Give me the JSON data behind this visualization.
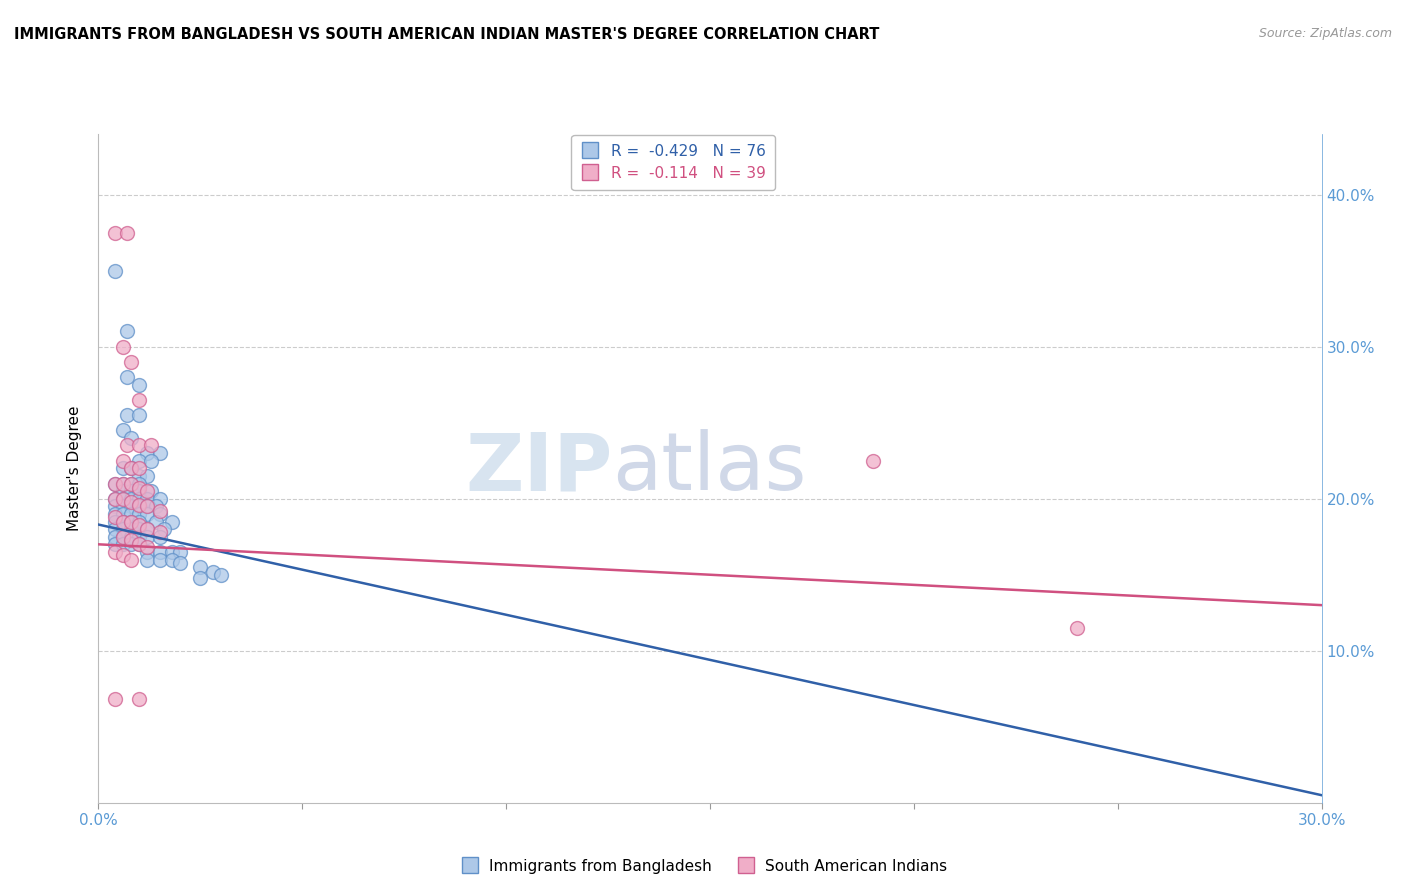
{
  "title": "IMMIGRANTS FROM BANGLADESH VS SOUTH AMERICAN INDIAN MASTER'S DEGREE CORRELATION CHART",
  "source": "Source: ZipAtlas.com",
  "ylabel": "Master's Degree",
  "ylabel_right_ticks": [
    "10.0%",
    "20.0%",
    "30.0%",
    "40.0%"
  ],
  "ylabel_right_vals": [
    0.1,
    0.2,
    0.3,
    0.4
  ],
  "xmin": 0.0,
  "xmax": 0.3,
  "ymin": 0.0,
  "ymax": 0.44,
  "legend_blue": "R =  -0.429   N = 76",
  "legend_pink": "R =  -0.114   N = 39",
  "legend_blue_label": "Immigrants from Bangladesh",
  "legend_pink_label": "South American Indians",
  "blue_color": "#adc8e8",
  "blue_edge_color": "#6090c8",
  "pink_color": "#f0aec8",
  "pink_edge_color": "#d06090",
  "blue_line_color": "#3060a8",
  "pink_line_color": "#d05080",
  "blue_line": [
    [
      0.0,
      0.183
    ],
    [
      0.3,
      0.005
    ]
  ],
  "pink_line": [
    [
      0.0,
      0.17
    ],
    [
      0.3,
      0.13
    ]
  ],
  "blue_scatter": [
    [
      0.004,
      0.35
    ],
    [
      0.007,
      0.31
    ],
    [
      0.007,
      0.28
    ],
    [
      0.01,
      0.275
    ],
    [
      0.007,
      0.255
    ],
    [
      0.01,
      0.255
    ],
    [
      0.006,
      0.245
    ],
    [
      0.008,
      0.24
    ],
    [
      0.012,
      0.23
    ],
    [
      0.015,
      0.23
    ],
    [
      0.01,
      0.225
    ],
    [
      0.013,
      0.225
    ],
    [
      0.006,
      0.22
    ],
    [
      0.008,
      0.22
    ],
    [
      0.01,
      0.215
    ],
    [
      0.012,
      0.215
    ],
    [
      0.004,
      0.21
    ],
    [
      0.006,
      0.21
    ],
    [
      0.008,
      0.21
    ],
    [
      0.01,
      0.21
    ],
    [
      0.006,
      0.205
    ],
    [
      0.008,
      0.205
    ],
    [
      0.01,
      0.205
    ],
    [
      0.013,
      0.205
    ],
    [
      0.004,
      0.2
    ],
    [
      0.006,
      0.2
    ],
    [
      0.008,
      0.2
    ],
    [
      0.01,
      0.2
    ],
    [
      0.012,
      0.2
    ],
    [
      0.015,
      0.2
    ],
    [
      0.004,
      0.195
    ],
    [
      0.006,
      0.195
    ],
    [
      0.008,
      0.195
    ],
    [
      0.01,
      0.195
    ],
    [
      0.012,
      0.195
    ],
    [
      0.014,
      0.195
    ],
    [
      0.004,
      0.19
    ],
    [
      0.006,
      0.19
    ],
    [
      0.008,
      0.19
    ],
    [
      0.01,
      0.19
    ],
    [
      0.012,
      0.19
    ],
    [
      0.015,
      0.19
    ],
    [
      0.004,
      0.185
    ],
    [
      0.006,
      0.185
    ],
    [
      0.008,
      0.185
    ],
    [
      0.01,
      0.185
    ],
    [
      0.014,
      0.185
    ],
    [
      0.018,
      0.185
    ],
    [
      0.004,
      0.18
    ],
    [
      0.006,
      0.18
    ],
    [
      0.008,
      0.18
    ],
    [
      0.01,
      0.18
    ],
    [
      0.012,
      0.18
    ],
    [
      0.016,
      0.18
    ],
    [
      0.004,
      0.175
    ],
    [
      0.006,
      0.175
    ],
    [
      0.008,
      0.175
    ],
    [
      0.01,
      0.175
    ],
    [
      0.012,
      0.175
    ],
    [
      0.015,
      0.175
    ],
    [
      0.004,
      0.17
    ],
    [
      0.006,
      0.17
    ],
    [
      0.008,
      0.17
    ],
    [
      0.01,
      0.17
    ],
    [
      0.012,
      0.165
    ],
    [
      0.015,
      0.165
    ],
    [
      0.018,
      0.165
    ],
    [
      0.02,
      0.165
    ],
    [
      0.012,
      0.16
    ],
    [
      0.015,
      0.16
    ],
    [
      0.018,
      0.16
    ],
    [
      0.02,
      0.158
    ],
    [
      0.025,
      0.155
    ],
    [
      0.028,
      0.152
    ],
    [
      0.03,
      0.15
    ],
    [
      0.025,
      0.148
    ]
  ],
  "pink_scatter": [
    [
      0.004,
      0.375
    ],
    [
      0.007,
      0.375
    ],
    [
      0.006,
      0.3
    ],
    [
      0.008,
      0.29
    ],
    [
      0.01,
      0.265
    ],
    [
      0.007,
      0.235
    ],
    [
      0.01,
      0.235
    ],
    [
      0.013,
      0.235
    ],
    [
      0.006,
      0.225
    ],
    [
      0.008,
      0.22
    ],
    [
      0.01,
      0.22
    ],
    [
      0.004,
      0.21
    ],
    [
      0.006,
      0.21
    ],
    [
      0.008,
      0.21
    ],
    [
      0.01,
      0.207
    ],
    [
      0.012,
      0.205
    ],
    [
      0.004,
      0.2
    ],
    [
      0.006,
      0.2
    ],
    [
      0.008,
      0.198
    ],
    [
      0.01,
      0.196
    ],
    [
      0.012,
      0.195
    ],
    [
      0.015,
      0.192
    ],
    [
      0.004,
      0.188
    ],
    [
      0.006,
      0.185
    ],
    [
      0.008,
      0.185
    ],
    [
      0.01,
      0.183
    ],
    [
      0.012,
      0.18
    ],
    [
      0.015,
      0.178
    ],
    [
      0.006,
      0.175
    ],
    [
      0.008,
      0.173
    ],
    [
      0.01,
      0.17
    ],
    [
      0.012,
      0.168
    ],
    [
      0.004,
      0.165
    ],
    [
      0.006,
      0.163
    ],
    [
      0.008,
      0.16
    ],
    [
      0.004,
      0.068
    ],
    [
      0.01,
      0.068
    ],
    [
      0.19,
      0.225
    ],
    [
      0.24,
      0.115
    ]
  ]
}
